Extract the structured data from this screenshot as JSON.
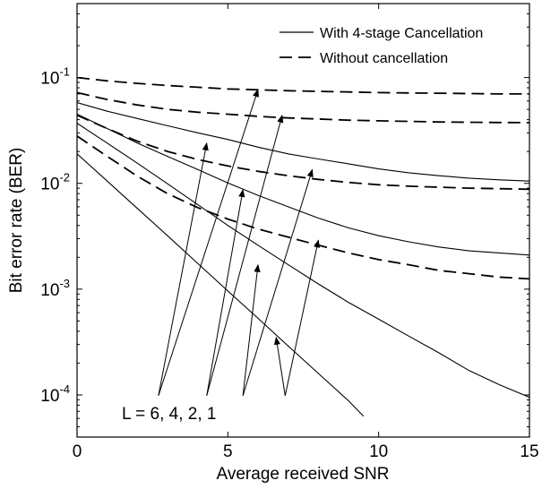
{
  "chart_data": {
    "type": "line",
    "xlabel": "Average received SNR",
    "ylabel": "Bit error rate (BER)",
    "xlim": [
      0,
      15
    ],
    "ylim": [
      4e-05,
      0.5
    ],
    "yscale": "log",
    "grid": false,
    "legend_position": "top-right",
    "x_ticks": [
      {
        "value": 0,
        "label": "0"
      },
      {
        "value": 5,
        "label": "5"
      },
      {
        "value": 10,
        "label": "10"
      },
      {
        "value": 15,
        "label": "15"
      }
    ],
    "y_ticks": [
      {
        "value": 0.1,
        "base": "10",
        "exp": "-1"
      },
      {
        "value": 0.01,
        "base": "10",
        "exp": "-2"
      },
      {
        "value": 0.001,
        "base": "10",
        "exp": "-3"
      },
      {
        "value": 0.0001,
        "base": "10",
        "exp": "-4"
      }
    ],
    "legend": [
      {
        "label": "With 4-stage Cancellation",
        "style": "solid"
      },
      {
        "label": "Without cancellation",
        "style": "dashed"
      }
    ],
    "series": [
      {
        "style": "solid",
        "L": 6,
        "x": [
          0,
          1,
          2,
          3,
          4,
          5,
          6,
          7,
          8,
          9,
          10,
          11,
          12,
          13,
          14,
          15
        ],
        "y": [
          0.058,
          0.048,
          0.041,
          0.035,
          0.03,
          0.026,
          0.022,
          0.019,
          0.017,
          0.0153,
          0.0137,
          0.0126,
          0.0118,
          0.0112,
          0.0108,
          0.0105
        ]
      },
      {
        "style": "solid",
        "L": 4,
        "x": [
          0,
          1,
          2,
          3,
          4,
          5,
          6,
          7,
          8,
          9,
          10,
          11,
          12,
          13,
          14,
          15
        ],
        "y": [
          0.045,
          0.033,
          0.024,
          0.018,
          0.0135,
          0.0101,
          0.0077,
          0.006,
          0.0047,
          0.0038,
          0.0032,
          0.0028,
          0.0025,
          0.0023,
          0.0022,
          0.0021
        ]
      },
      {
        "style": "solid",
        "L": 2,
        "x": [
          0,
          1,
          2,
          3,
          4,
          5,
          6,
          7,
          8,
          9,
          10,
          11,
          12,
          13,
          14,
          15
        ],
        "y": [
          0.037,
          0.024,
          0.0155,
          0.0099,
          0.0063,
          0.004,
          0.0026,
          0.0017,
          0.00112,
          0.00075,
          0.00052,
          0.00036,
          0.00025,
          0.00017,
          0.000125,
          9.5e-05
        ]
      },
      {
        "style": "solid",
        "L": 1,
        "x": [
          0,
          1,
          2,
          3,
          4,
          5,
          6,
          7,
          8,
          9,
          9.5
        ],
        "y": [
          0.019,
          0.0105,
          0.0058,
          0.0032,
          0.00175,
          0.00096,
          0.00053,
          0.00029,
          0.00016,
          8.8e-05,
          6.3e-05
        ]
      },
      {
        "style": "dashed",
        "L": 6,
        "x": [
          0,
          1,
          2,
          3,
          4,
          5,
          6,
          7,
          8,
          9,
          10,
          11,
          12,
          13,
          14,
          15
        ],
        "y": [
          0.1,
          0.093,
          0.088,
          0.084,
          0.081,
          0.078,
          0.0765,
          0.075,
          0.074,
          0.073,
          0.072,
          0.0715,
          0.071,
          0.0705,
          0.07,
          0.07
        ]
      },
      {
        "style": "dashed",
        "L": 4,
        "x": [
          0,
          1,
          2,
          3,
          4,
          5,
          6,
          7,
          8,
          9,
          10,
          11,
          12,
          13,
          14,
          15
        ],
        "y": [
          0.072,
          0.062,
          0.055,
          0.05,
          0.047,
          0.045,
          0.043,
          0.0415,
          0.0405,
          0.0395,
          0.039,
          0.0385,
          0.038,
          0.0378,
          0.0376,
          0.0375
        ]
      },
      {
        "style": "dashed",
        "L": 2,
        "x": [
          0,
          1,
          2,
          3,
          4,
          5,
          6,
          7,
          8,
          9,
          10,
          11,
          12,
          13,
          14,
          15
        ],
        "y": [
          0.044,
          0.033,
          0.025,
          0.02,
          0.0168,
          0.0146,
          0.013,
          0.0118,
          0.0109,
          0.0102,
          0.0097,
          0.0094,
          0.0092,
          0.009,
          0.0089,
          0.0088
        ]
      },
      {
        "style": "dashed",
        "L": 1,
        "x": [
          0,
          1,
          2,
          3,
          4,
          5,
          6,
          7,
          8,
          9,
          10,
          11,
          12,
          13,
          14,
          15
        ],
        "y": [
          0.028,
          0.018,
          0.0117,
          0.008,
          0.0059,
          0.0046,
          0.0037,
          0.0031,
          0.0026,
          0.0022,
          0.0019,
          0.0017,
          0.0015,
          0.0014,
          0.0013,
          0.00125
        ]
      }
    ],
    "annotation": {
      "text": "L = 6,  4,  2,  1",
      "x": 4.3,
      "y": 6.3e-05,
      "arrows": [
        {
          "L": 6,
          "from": [
            2.7,
            7.8e-05
          ],
          "to": [
            6.0,
            0.077
          ]
        },
        {
          "L": 6,
          "from": [
            2.7,
            7.8e-05
          ],
          "to": [
            4.3,
            0.024
          ]
        },
        {
          "L": 4,
          "from": [
            4.3,
            7.8e-05
          ],
          "to": [
            6.8,
            0.044
          ]
        },
        {
          "L": 4,
          "from": [
            4.3,
            7.8e-05
          ],
          "to": [
            5.5,
            0.0087
          ]
        },
        {
          "L": 2,
          "from": [
            5.5,
            7.8e-05
          ],
          "to": [
            7.8,
            0.0135
          ]
        },
        {
          "L": 2,
          "from": [
            5.5,
            7.8e-05
          ],
          "to": [
            6.0,
            0.0017
          ]
        },
        {
          "L": 1,
          "from": [
            6.9,
            7.8e-05
          ],
          "to": [
            8.0,
            0.0029
          ]
        },
        {
          "L": 1,
          "from": [
            6.9,
            7.8e-05
          ],
          "to": [
            6.6,
            0.00035
          ]
        }
      ]
    }
  }
}
